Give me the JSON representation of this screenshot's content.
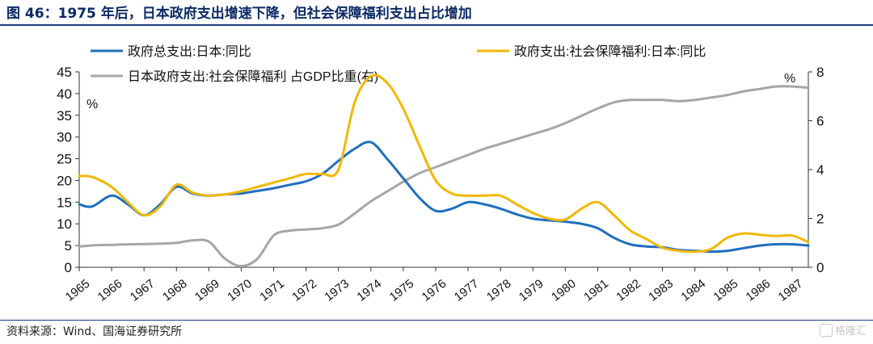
{
  "figure": {
    "title": "图 46：1975 年后，日本政府支出增速下降，但社会保障福利支出占比增加",
    "source": "资料来源：Wind、国海证券研究所",
    "watermark": "格隆汇"
  },
  "chart_data": {
    "type": "line",
    "x": [
      "1965",
      "1966",
      "1967",
      "1968",
      "1969",
      "1970",
      "1971",
      "1972",
      "1973",
      "1974",
      "1975",
      "1976",
      "1977",
      "1978",
      "1979",
      "1980",
      "1981",
      "1982",
      "1983",
      "1984",
      "1985",
      "1986",
      "1987"
    ],
    "y_left": {
      "unit": "%",
      "ylim": [
        0,
        45
      ],
      "ticks": [
        0,
        5,
        10,
        15,
        20,
        25,
        30,
        35,
        40,
        45
      ]
    },
    "y_right": {
      "unit": "%",
      "ylim": [
        0,
        8
      ],
      "ticks": [
        0,
        2,
        4,
        6,
        8
      ]
    },
    "grid": false,
    "legend_position": "top",
    "series": [
      {
        "name": "政府总支出:日本:同比",
        "axis": "left",
        "color": "#1f6fbf",
        "points": [
          [
            1965,
            14.5
          ],
          [
            1965.4,
            14.0
          ],
          [
            1966,
            16.5
          ],
          [
            1966.5,
            14.5
          ],
          [
            1967,
            12.0
          ],
          [
            1967.5,
            14.5
          ],
          [
            1968,
            18.5
          ],
          [
            1968.5,
            17.0
          ],
          [
            1969,
            16.5
          ],
          [
            1969.5,
            16.8
          ],
          [
            1970,
            17.0
          ],
          [
            1970.5,
            17.6
          ],
          [
            1971,
            18.2
          ],
          [
            1971.5,
            19.0
          ],
          [
            1972,
            19.8
          ],
          [
            1972.5,
            21.5
          ],
          [
            1973,
            24.5
          ],
          [
            1973.5,
            27.3
          ],
          [
            1974,
            28.8
          ],
          [
            1974.5,
            25.0
          ],
          [
            1975,
            20.5
          ],
          [
            1975.5,
            16.0
          ],
          [
            1976,
            13.0
          ],
          [
            1976.5,
            13.5
          ],
          [
            1977,
            15.0
          ],
          [
            1977.5,
            14.5
          ],
          [
            1978,
            13.5
          ],
          [
            1978.5,
            12.2
          ],
          [
            1979,
            11.2
          ],
          [
            1979.5,
            10.8
          ],
          [
            1980,
            10.5
          ],
          [
            1980.5,
            10.0
          ],
          [
            1981,
            9.0
          ],
          [
            1981.5,
            6.8
          ],
          [
            1982,
            5.3
          ],
          [
            1982.5,
            4.8
          ],
          [
            1983,
            4.6
          ],
          [
            1983.5,
            4.0
          ],
          [
            1984,
            3.8
          ],
          [
            1984.5,
            3.6
          ],
          [
            1985,
            3.8
          ],
          [
            1985.5,
            4.4
          ],
          [
            1986,
            5.0
          ],
          [
            1986.5,
            5.3
          ],
          [
            1987,
            5.3
          ],
          [
            1987.5,
            5.0
          ]
        ]
      },
      {
        "name": "政府支出:社会保障福利:日本:同比",
        "axis": "left",
        "color": "#f2b705",
        "points": [
          [
            1965,
            21.0
          ],
          [
            1965.4,
            20.8
          ],
          [
            1966,
            18.5
          ],
          [
            1966.5,
            15.0
          ],
          [
            1967,
            12.0
          ],
          [
            1967.5,
            14.0
          ],
          [
            1968,
            19.0
          ],
          [
            1968.5,
            17.2
          ],
          [
            1969,
            16.5
          ],
          [
            1969.5,
            16.8
          ],
          [
            1970,
            17.5
          ],
          [
            1970.5,
            18.5
          ],
          [
            1971,
            19.5
          ],
          [
            1971.5,
            20.5
          ],
          [
            1972,
            21.5
          ],
          [
            1972.5,
            21.5
          ],
          [
            1973,
            22.5
          ],
          [
            1973.5,
            38.0
          ],
          [
            1974,
            44.0
          ],
          [
            1974.5,
            42.5
          ],
          [
            1975,
            36.5
          ],
          [
            1975.5,
            28.0
          ],
          [
            1976,
            20.0
          ],
          [
            1976.5,
            17.0
          ],
          [
            1977,
            16.5
          ],
          [
            1977.5,
            16.5
          ],
          [
            1978,
            16.5
          ],
          [
            1978.5,
            14.5
          ],
          [
            1979,
            12.5
          ],
          [
            1979.5,
            11.2
          ],
          [
            1980,
            11.0
          ],
          [
            1980.5,
            13.5
          ],
          [
            1981,
            15.0
          ],
          [
            1981.5,
            12.0
          ],
          [
            1982,
            8.5
          ],
          [
            1982.5,
            6.5
          ],
          [
            1983,
            4.5
          ],
          [
            1983.5,
            3.8
          ],
          [
            1984,
            3.6
          ],
          [
            1984.5,
            4.2
          ],
          [
            1985,
            6.8
          ],
          [
            1985.5,
            7.8
          ],
          [
            1986,
            7.5
          ],
          [
            1986.5,
            7.2
          ],
          [
            1987,
            7.3
          ],
          [
            1987.5,
            5.8
          ]
        ]
      },
      {
        "name": "日本政府支出:社会保障福利 占GDP比重(右)",
        "axis": "right",
        "color": "#a6a6a6",
        "points": [
          [
            1965,
            0.85
          ],
          [
            1965.5,
            0.9
          ],
          [
            1966,
            0.92
          ],
          [
            1966.5,
            0.94
          ],
          [
            1967,
            0.95
          ],
          [
            1967.5,
            0.97
          ],
          [
            1968,
            1.0
          ],
          [
            1968.5,
            1.1
          ],
          [
            1969,
            1.05
          ],
          [
            1969.5,
            0.35
          ],
          [
            1970,
            0.05
          ],
          [
            1970.5,
            0.35
          ],
          [
            1971,
            1.3
          ],
          [
            1971.5,
            1.5
          ],
          [
            1972,
            1.55
          ],
          [
            1972.5,
            1.6
          ],
          [
            1973,
            1.75
          ],
          [
            1973.5,
            2.2
          ],
          [
            1974,
            2.7
          ],
          [
            1974.5,
            3.1
          ],
          [
            1975,
            3.5
          ],
          [
            1975.5,
            3.85
          ],
          [
            1976,
            4.1
          ],
          [
            1976.5,
            4.35
          ],
          [
            1977,
            4.6
          ],
          [
            1977.5,
            4.85
          ],
          [
            1978,
            5.05
          ],
          [
            1978.5,
            5.25
          ],
          [
            1979,
            5.45
          ],
          [
            1979.5,
            5.65
          ],
          [
            1980,
            5.9
          ],
          [
            1980.5,
            6.2
          ],
          [
            1981,
            6.5
          ],
          [
            1981.5,
            6.75
          ],
          [
            1982,
            6.85
          ],
          [
            1982.5,
            6.85
          ],
          [
            1983,
            6.85
          ],
          [
            1983.5,
            6.8
          ],
          [
            1984,
            6.85
          ],
          [
            1984.5,
            6.95
          ],
          [
            1985,
            7.05
          ],
          [
            1985.5,
            7.2
          ],
          [
            1986,
            7.3
          ],
          [
            1986.5,
            7.4
          ],
          [
            1987,
            7.4
          ],
          [
            1987.5,
            7.35
          ]
        ]
      }
    ]
  }
}
